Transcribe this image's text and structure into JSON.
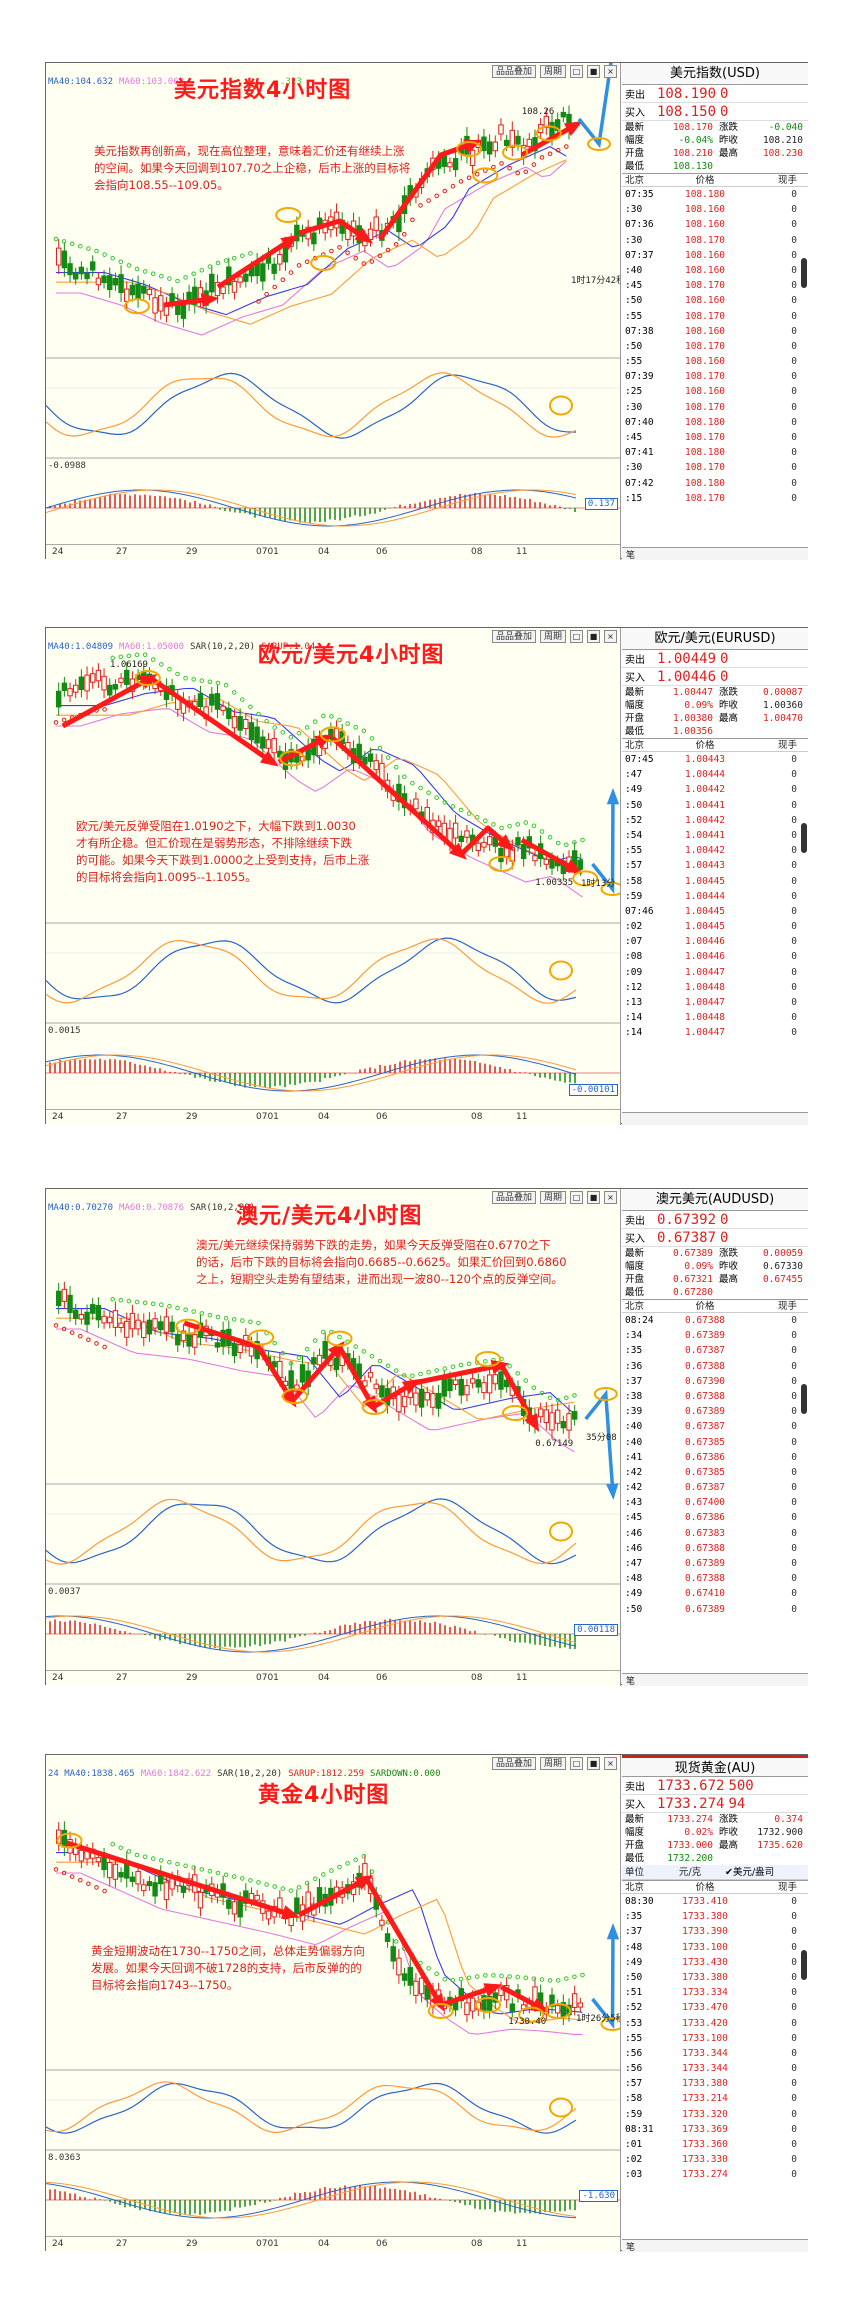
{
  "colors": {
    "up": "#e0201c",
    "down": "#138a13",
    "arrow": "#ff1a1a",
    "bluearrow": "#2e8fe3",
    "ring": "#f2a800",
    "ma_blue": "#3a3af0",
    "ma_pink": "#e37adf",
    "sar_green": "#37c837",
    "sar_red": "#e0201c"
  },
  "panels": [
    {
      "id": "usd",
      "title": "美元指数4小时图",
      "ma": [
        {
          "t": "MA40:104.632",
          "c": "#2a64c8"
        },
        {
          "t": "MA60:103.063",
          "c": "#e37adf"
        }
      ],
      "ma_tail": ".323",
      "buttons": [
        "品品叠加",
        "周期"
      ],
      "note": [
        "美元指数再创新高，现在高位整理，意味着汇价还有继续上涨",
        "的空间。如果今天回调到107.70之上企稳，后市上涨的目标将",
        "会指向108.55--109.05。"
      ],
      "high_label": "108.26",
      "timer": "1时17分42秒",
      "sub1_label": "",
      "sub2_label": "-0.0988",
      "tag": "0.137",
      "xaxis": [
        "24",
        "27",
        "29",
        "0701",
        "04",
        "06",
        "08",
        "11"
      ],
      "quote": {
        "name": "美元指数(USD)",
        "sell_k": "卖出",
        "sell": "108.190",
        "sell_d": "0",
        "buy_k": "买入",
        "buy": "108.150",
        "buy_d": "0",
        "stats": [
          [
            "最新",
            "108.170",
            "red",
            "涨跌",
            "-0.040",
            "grn"
          ],
          [
            "幅度",
            "-0.04%",
            "grn",
            "昨收",
            "108.210",
            "blk"
          ],
          [
            "开盘",
            "108.210",
            "red",
            "最高",
            "108.230",
            "red"
          ],
          [
            "最低",
            "108.130",
            "grn",
            "",
            "",
            ""
          ]
        ],
        "head": [
          "北京",
          "价格",
          "现手"
        ],
        "ticks": [
          [
            "07:35",
            "108.180",
            "0"
          ],
          [
            ":30",
            "108.160",
            "0"
          ],
          [
            "07:36",
            "108.160",
            "0"
          ],
          [
            ":30",
            "108.170",
            "0"
          ],
          [
            "07:37",
            "108.160",
            "0"
          ],
          [
            ":40",
            "108.160",
            "0"
          ],
          [
            ":45",
            "108.170",
            "0"
          ],
          [
            ":50",
            "108.160",
            "0"
          ],
          [
            ":55",
            "108.170",
            "0"
          ],
          [
            "07:38",
            "108.160",
            "0"
          ],
          [
            ":50",
            "108.170",
            "0"
          ],
          [
            ":55",
            "108.160",
            "0"
          ],
          [
            "07:39",
            "108.170",
            "0"
          ],
          [
            ":25",
            "108.160",
            "0"
          ],
          [
            ":30",
            "108.170",
            "0"
          ],
          [
            "07:40",
            "108.180",
            "0"
          ],
          [
            ":45",
            "108.170",
            "0"
          ],
          [
            "07:41",
            "108.180",
            "0"
          ],
          [
            ":30",
            "108.170",
            "0"
          ],
          [
            "07:42",
            "108.180",
            "0"
          ],
          [
            ":15",
            "108.170",
            "0"
          ]
        ],
        "foot": "笔"
      }
    },
    {
      "id": "eur",
      "title": "欧元/美元4小时图",
      "ma": [
        {
          "t": "MA40:1.04809",
          "c": "#2a64c8"
        },
        {
          "t": "MA60:1.05000",
          "c": "#e37adf"
        },
        {
          "t": "SAR(10,2,20)",
          "c": "#333"
        },
        {
          "t": "SARUP:1.04",
          "c": "#e0201c"
        }
      ],
      "ma_tail": "",
      "buttons": [
        "品品叠加",
        "周期"
      ],
      "note": [
        "欧元/美元反弹受阻在1.0190之下，大幅下跌到1.0030",
        "才有所企稳。但汇价现在是弱势形态，不排除继续下跌",
        "的可能。如果今天下跌到1.0000之上受到支持，后市上涨",
        "的目标将会指向1.0095--1.1055。"
      ],
      "high_label": "1.06169",
      "low_label": "1.00335",
      "timer": "1时13分",
      "sub1_label": "",
      "sub2_label": "0.0015",
      "tag": "-0.00101",
      "xaxis": [
        "24",
        "27",
        "29",
        "0701",
        "04",
        "06",
        "08",
        "11"
      ],
      "quote": {
        "name": "欧元/美元(EURUSD)",
        "sell_k": "卖出",
        "sell": "1.00449",
        "sell_d": "0",
        "buy_k": "买入",
        "buy": "1.00446",
        "buy_d": "0",
        "stats": [
          [
            "最新",
            "1.00447",
            "red",
            "涨跌",
            "0.00087",
            "red"
          ],
          [
            "幅度",
            "0.09%",
            "red",
            "昨收",
            "1.00360",
            "blk"
          ],
          [
            "开盘",
            "1.00380",
            "red",
            "最高",
            "1.00470",
            "red"
          ],
          [
            "最低",
            "1.00356",
            "red",
            "",
            "",
            ""
          ]
        ],
        "head": [
          "北京",
          "价格",
          "现手"
        ],
        "ticks": [
          [
            "07:45",
            "1.00443",
            "0"
          ],
          [
            ":47",
            "1.00444",
            "0"
          ],
          [
            ":49",
            "1.00442",
            "0"
          ],
          [
            ":50",
            "1.00441",
            "0"
          ],
          [
            ":52",
            "1.00442",
            "0"
          ],
          [
            ":54",
            "1.00441",
            "0"
          ],
          [
            ":55",
            "1.00442",
            "0"
          ],
          [
            ":57",
            "1.00443",
            "0"
          ],
          [
            ":58",
            "1.00445",
            "0"
          ],
          [
            ":59",
            "1.00444",
            "0"
          ],
          [
            "07:46",
            "1.00445",
            "0"
          ],
          [
            ":02",
            "1.00445",
            "0"
          ],
          [
            ":07",
            "1.00446",
            "0"
          ],
          [
            ":08",
            "1.00446",
            "0"
          ],
          [
            ":09",
            "1.00447",
            "0"
          ],
          [
            ":12",
            "1.00448",
            "0"
          ],
          [
            ":13",
            "1.00447",
            "0"
          ],
          [
            ":14",
            "1.00448",
            "0"
          ],
          [
            ":14",
            "1.00447",
            "0"
          ]
        ],
        "foot": ""
      }
    },
    {
      "id": "aud",
      "title": "澳元/美元4小时图",
      "ma": [
        {
          "t": "MA40:0.70270",
          "c": "#2a64c8"
        },
        {
          "t": "MA60:0.70876",
          "c": "#e37adf"
        },
        {
          "t": "SAR(10,2,20)",
          "c": "#333"
        }
      ],
      "ma_tail": "",
      "buttons": [
        "品品叠加",
        "周期"
      ],
      "note": [
        "澳元/美元继续保持弱势下跌的走势，如果今天反弹受阻在0.6770之下",
        "的话，后市下跌的目标将会指向0.6685--0.6625。如果汇价回到0.6860",
        "之上，短期空头走势有望结束，进而出现一波80--120个点的反弹空间。"
      ],
      "high_label": "",
      "low_label": "0.67149",
      "timer": "35分08",
      "sub1_label": "",
      "sub2_label": "0.0037",
      "tag": "0.00118",
      "xaxis": [
        "24",
        "27",
        "29",
        "0701",
        "04",
        "06",
        "08",
        "11"
      ],
      "quote": {
        "name": "澳元美元(AUDUSD)",
        "sell_k": "卖出",
        "sell": "0.67392",
        "sell_d": "0",
        "buy_k": "买入",
        "buy": "0.67387",
        "buy_d": "0",
        "stats": [
          [
            "最新",
            "0.67389",
            "red",
            "涨跌",
            "0.00059",
            "red"
          ],
          [
            "幅度",
            "0.09%",
            "red",
            "昨收",
            "0.67330",
            "blk"
          ],
          [
            "开盘",
            "0.67321",
            "red",
            "最高",
            "0.67455",
            "red"
          ],
          [
            "最低",
            "0.67280",
            "red",
            "",
            "",
            ""
          ]
        ],
        "head": [
          "北京",
          "价格",
          "现手"
        ],
        "ticks": [
          [
            "08:24",
            "0.67388",
            "0"
          ],
          [
            ":34",
            "0.67389",
            "0"
          ],
          [
            ":35",
            "0.67387",
            "0"
          ],
          [
            ":36",
            "0.67388",
            "0"
          ],
          [
            ":37",
            "0.67390",
            "0"
          ],
          [
            ":38",
            "0.67388",
            "0"
          ],
          [
            ":39",
            "0.67389",
            "0"
          ],
          [
            ":40",
            "0.67387",
            "0"
          ],
          [
            ":40",
            "0.67385",
            "0"
          ],
          [
            ":41",
            "0.67386",
            "0"
          ],
          [
            ":42",
            "0.67385",
            "0"
          ],
          [
            ":42",
            "0.67387",
            "0"
          ],
          [
            ":43",
            "0.67400",
            "0"
          ],
          [
            ":45",
            "0.67386",
            "0"
          ],
          [
            ":46",
            "0.67383",
            "0"
          ],
          [
            ":46",
            "0.67388",
            "0"
          ],
          [
            ":47",
            "0.67389",
            "0"
          ],
          [
            ":48",
            "0.67388",
            "0"
          ],
          [
            ":49",
            "0.67410",
            "0"
          ],
          [
            ":50",
            "0.67389",
            "0"
          ]
        ],
        "foot": "笔"
      }
    },
    {
      "id": "gold",
      "title": "黄金4小时图",
      "ma": [
        {
          "t": "24 MA40:1838.465",
          "c": "#2a64c8"
        },
        {
          "t": "MA60:1842.622",
          "c": "#e37adf"
        },
        {
          "t": "SAR(10,2,20)",
          "c": "#333"
        },
        {
          "t": "SARUP:1812.259",
          "c": "#e0201c"
        },
        {
          "t": "SARDOWN:0.000",
          "c": "#138a13"
        }
      ],
      "ma_tail": "",
      "buttons": [
        "品品叠加",
        "周期"
      ],
      "note": [
        "黄金短期波动在1730--1750之间，总体走势偏弱方向",
        "发展。如果今天回调不破1728的支持，后市反弹的的",
        "目标将会指向1743--1750。"
      ],
      "high_label": "",
      "low_label": "1730.40",
      "timer": "1时26分5秒",
      "sub1_label": "",
      "sub2_label": "8.0363",
      "tag": "-1.630",
      "xaxis": [
        "24",
        "27",
        "29",
        "0701",
        "04",
        "06",
        "08",
        "11"
      ],
      "quote": {
        "name": "现货黄金(AU)",
        "sell_k": "卖出",
        "sell": "1733.672",
        "sell_d": "500",
        "buy_k": "买入",
        "buy": "1733.274",
        "buy_d": "94",
        "stats": [
          [
            "最新",
            "1733.274",
            "red",
            "涨跌",
            "0.374",
            "red"
          ],
          [
            "幅度",
            "0.02%",
            "red",
            "昨收",
            "1732.900",
            "blk"
          ],
          [
            "开盘",
            "1733.000",
            "red",
            "最高",
            "1735.620",
            "red"
          ],
          [
            "最低",
            "1732.200",
            "grn",
            "",
            "",
            ""
          ]
        ],
        "unit": [
          "单位",
          "元/克",
          "✔美元/盎司"
        ],
        "head": [
          "北京",
          "价格",
          "现手"
        ],
        "ticks": [
          [
            "08:30",
            "1733.410",
            "0"
          ],
          [
            ":35",
            "1733.380",
            "0"
          ],
          [
            ":37",
            "1733.390",
            "0"
          ],
          [
            ":48",
            "1733.100",
            "0"
          ],
          [
            ":49",
            "1733.430",
            "0"
          ],
          [
            ":50",
            "1733.380",
            "0"
          ],
          [
            ":51",
            "1733.334",
            "0"
          ],
          [
            ":52",
            "1733.470",
            "0"
          ],
          [
            ":53",
            "1733.420",
            "0"
          ],
          [
            ":55",
            "1733.100",
            "0"
          ],
          [
            ":56",
            "1733.344",
            "0"
          ],
          [
            ":56",
            "1733.344",
            "0"
          ],
          [
            ":57",
            "1733.380",
            "0"
          ],
          [
            ":58",
            "1733.214",
            "0"
          ],
          [
            ":59",
            "1733.320",
            "0"
          ],
          [
            "08:31",
            "1733.369",
            "0"
          ],
          [
            ":01",
            "1733.360",
            "0"
          ],
          [
            ":02",
            "1733.330",
            "0"
          ],
          [
            ":03",
            "1733.274",
            "0"
          ]
        ],
        "foot": "笔"
      }
    }
  ]
}
